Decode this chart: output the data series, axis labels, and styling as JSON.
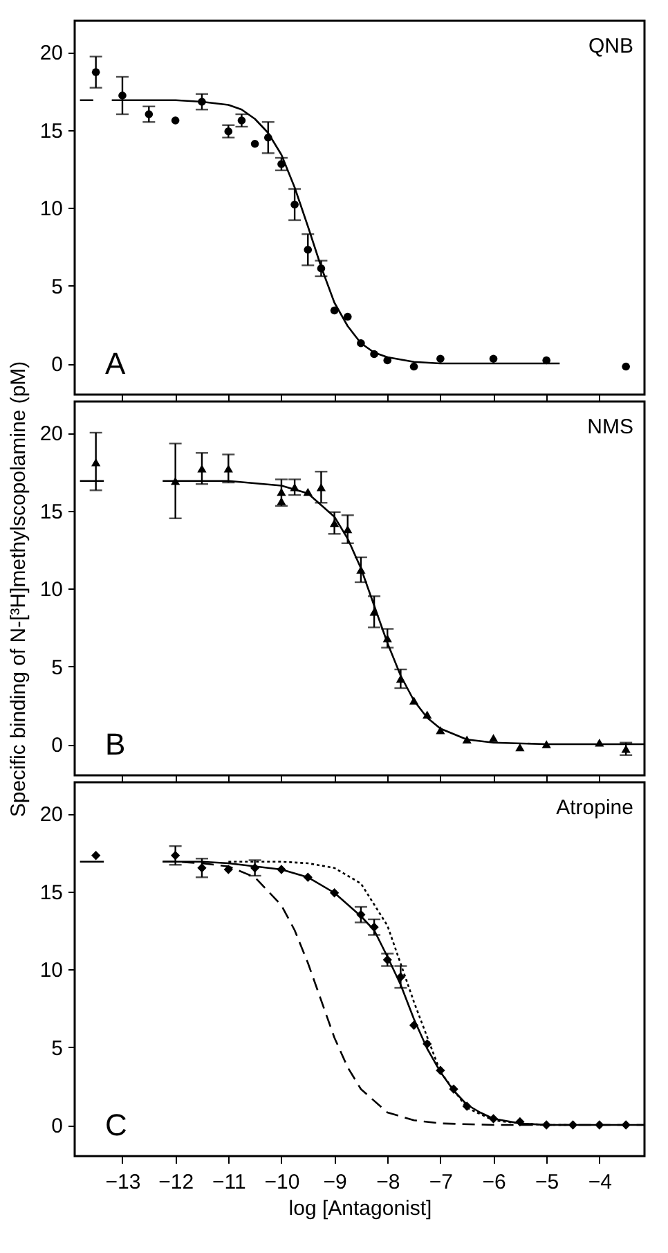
{
  "chart_data": [
    {
      "type": "scatter",
      "annotations": [
        "QNB",
        "A"
      ],
      "xlim": [
        -13.9,
        -3.15
      ],
      "ylim": [
        -2,
        22
      ],
      "xticks": [
        -13,
        -12,
        -11,
        -10,
        -9,
        -8,
        -7,
        -6,
        -5,
        -4
      ],
      "yticks": [
        0,
        5,
        10,
        15,
        20
      ],
      "tick_labels": "y",
      "series": [
        {
          "type": "scatter",
          "marker": "circle",
          "color": "#000000",
          "x": [
            -13.5,
            -13,
            -12.5,
            -12,
            -11.5,
            -11,
            -10.75,
            -10.5,
            -10.25,
            -10,
            -9.75,
            -9.5,
            -9.25,
            -9,
            -8.75,
            -8.5,
            -8.25,
            -8,
            -7.5,
            -7,
            -6,
            -5,
            -3.5
          ],
          "values": [
            18.7,
            17.2,
            16.0,
            15.6,
            16.8,
            14.9,
            15.6,
            14.1,
            14.5,
            12.8,
            10.2,
            7.3,
            6.1,
            3.4,
            3.0,
            1.3,
            0.6,
            0.2,
            -0.2,
            0.3,
            0.3,
            0.2,
            -0.2
          ],
          "errors": [
            1.0,
            1.2,
            0.5,
            null,
            0.5,
            0.4,
            0.4,
            null,
            1.0,
            0.4,
            1.0,
            1.0,
            0.5,
            null,
            null,
            null,
            null,
            null,
            null,
            null,
            null,
            null,
            null
          ]
        },
        {
          "type": "line",
          "marker": "none",
          "line_style": "solid",
          "color": "#000000",
          "x": [
            -13.8,
            -13.55,
            -13.4,
            -13.2,
            -12,
            -11.5,
            -11,
            -10.75,
            -10.5,
            -10.25,
            -10,
            -9.75,
            -9.5,
            -9.25,
            -9,
            -8.75,
            -8.5,
            -8.25,
            -8,
            -7.5,
            -7,
            -6,
            -4.75
          ],
          "values": [
            16.9,
            16.9,
            null,
            16.9,
            16.9,
            16.8,
            16.6,
            16.3,
            15.7,
            14.8,
            13.4,
            11.3,
            8.8,
            6.2,
            3.9,
            2.4,
            1.3,
            0.7,
            0.4,
            0.1,
            0.0,
            0.0,
            0.0
          ]
        }
      ]
    },
    {
      "type": "scatter",
      "ylabel": "Specific binding of N-[³H]methylscopolamine (pM)",
      "annotations": [
        "NMS",
        "B"
      ],
      "xlim": [
        -13.9,
        -3.15
      ],
      "ylim": [
        -2,
        22
      ],
      "xticks": [
        -13,
        -12,
        -11,
        -10,
        -9,
        -8,
        -7,
        -6,
        -5,
        -4
      ],
      "yticks": [
        0,
        5,
        10,
        15,
        20
      ],
      "tick_labels": "y",
      "series": [
        {
          "type": "scatter",
          "marker": "triangle",
          "color": "#000000",
          "x": [
            -13.5,
            -12,
            -11.5,
            -11,
            -10,
            -10,
            -9.75,
            -9.5,
            -9.25,
            -9,
            -8.75,
            -8.5,
            -8.25,
            -8,
            -7.75,
            -7.5,
            -7.25,
            -7,
            -6.5,
            -6,
            -5.5,
            -5,
            -4,
            -3.5
          ],
          "values": [
            18.1,
            16.9,
            17.7,
            17.7,
            16.2,
            15.6,
            16.5,
            16.2,
            16.5,
            14.2,
            13.8,
            11.2,
            8.5,
            6.8,
            4.2,
            2.8,
            1.9,
            0.9,
            0.3,
            0.4,
            -0.2,
            0.0,
            0.1,
            -0.3
          ],
          "errors": [
            [
              16.3,
              20.0
            ],
            2.4,
            1.0,
            0.9,
            [
              15.3,
              17.0
            ],
            null,
            0.5,
            null,
            1.0,
            0.7,
            0.9,
            0.8,
            1.0,
            0.6,
            0.6,
            null,
            null,
            null,
            null,
            null,
            null,
            null,
            null,
            0.4
          ]
        },
        {
          "type": "line",
          "marker": "none",
          "line_style": "solid",
          "color": "#000000",
          "x": [
            -13.8,
            -13.35,
            -13.2,
            -12.24,
            -11,
            -10,
            -9.5,
            -9,
            -8.75,
            -8.5,
            -8.25,
            -8,
            -7.75,
            -7.5,
            -7.25,
            -7,
            -6.5,
            -6,
            -5,
            -4,
            -3.15
          ],
          "values": [
            16.9,
            16.9,
            null,
            16.9,
            16.9,
            16.6,
            16.1,
            14.6,
            13.2,
            11.3,
            8.9,
            6.5,
            4.4,
            2.8,
            1.7,
            1.0,
            0.3,
            0.1,
            0.0,
            0.0,
            0.0
          ]
        }
      ]
    },
    {
      "type": "scatter",
      "xlabel": "log [Antagonist]",
      "annotations": [
        "Atropine",
        "C"
      ],
      "xlim": [
        -13.9,
        -3.15
      ],
      "ylim": [
        -2,
        22
      ],
      "xticks": [
        -13,
        -12,
        -11,
        -10,
        -9,
        -8,
        -7,
        -6,
        -5,
        -4
      ],
      "yticks": [
        0,
        5,
        10,
        15,
        20
      ],
      "series": [
        {
          "type": "line",
          "marker": "none",
          "line_style": "dashed",
          "color": "#000000",
          "x": [
            -12.24,
            -12,
            -11.5,
            -11,
            -10.5,
            -10,
            -9.75,
            -9.5,
            -9.25,
            -9,
            -8.75,
            -8.5,
            -8,
            -7.5,
            -7,
            -6,
            -5,
            -3.15
          ],
          "values": [
            16.9,
            16.9,
            16.8,
            16.6,
            15.9,
            14.1,
            12.5,
            10.4,
            8.0,
            5.6,
            3.7,
            2.3,
            0.8,
            0.3,
            0.1,
            0.0,
            0.0,
            0.0
          ]
        },
        {
          "type": "line",
          "marker": "none",
          "line_style": "dotted",
          "color": "#000000",
          "x": [
            -11,
            -10,
            -9.5,
            -9,
            -8.5,
            -8,
            -7.5,
            -7,
            -6.5,
            -6,
            -5.5,
            -5,
            -4.5
          ],
          "values": [
            16.9,
            16.9,
            16.8,
            16.5,
            15.5,
            12.8,
            7.9,
            3.4,
            1.1,
            0.3,
            0.1,
            0.0,
            0.0
          ]
        },
        {
          "type": "line",
          "marker": "none",
          "line_style": "solid",
          "color": "#000000",
          "x": [
            -13.8,
            -13.35,
            -13.2,
            -12.24,
            -11.5,
            -11,
            -10.5,
            -10,
            -9.5,
            -9,
            -8.5,
            -8.25,
            -8,
            -7.75,
            -7.5,
            -7.25,
            -7,
            -6.75,
            -6.5,
            -6.25,
            -6,
            -5.5,
            -5,
            -4,
            -3.15
          ],
          "values": [
            16.9,
            16.9,
            null,
            16.9,
            16.9,
            16.8,
            16.6,
            16.4,
            15.9,
            14.9,
            13.4,
            12.5,
            10.8,
            9.0,
            6.8,
            4.9,
            3.4,
            2.2,
            1.3,
            0.8,
            0.4,
            0.1,
            0.0,
            0.0,
            0.0
          ]
        },
        {
          "type": "scatter",
          "marker": "diamond",
          "color": "#000000",
          "x": [
            -13.5,
            -12,
            -11.5,
            -11,
            -10.5,
            -10,
            -9.5,
            -9,
            -8.5,
            -8.25,
            -8,
            -7.75,
            -7.5,
            -7.25,
            -7,
            -6.75,
            -6.5,
            -6,
            -5.5,
            -5,
            -4.5,
            -4,
            -3.5
          ],
          "values": [
            17.3,
            17.3,
            16.5,
            16.4,
            16.5,
            16.4,
            15.9,
            14.9,
            13.5,
            12.7,
            10.6,
            9.5,
            6.4,
            5.2,
            3.5,
            2.3,
            1.2,
            0.4,
            0.2,
            0.0,
            0.0,
            0.0,
            0.0
          ],
          "errors": [
            null,
            0.6,
            0.6,
            null,
            0.5,
            null,
            null,
            null,
            0.5,
            0.5,
            0.4,
            0.7,
            null,
            null,
            null,
            null,
            null,
            null,
            null,
            null,
            null,
            null,
            null
          ]
        }
      ]
    }
  ]
}
